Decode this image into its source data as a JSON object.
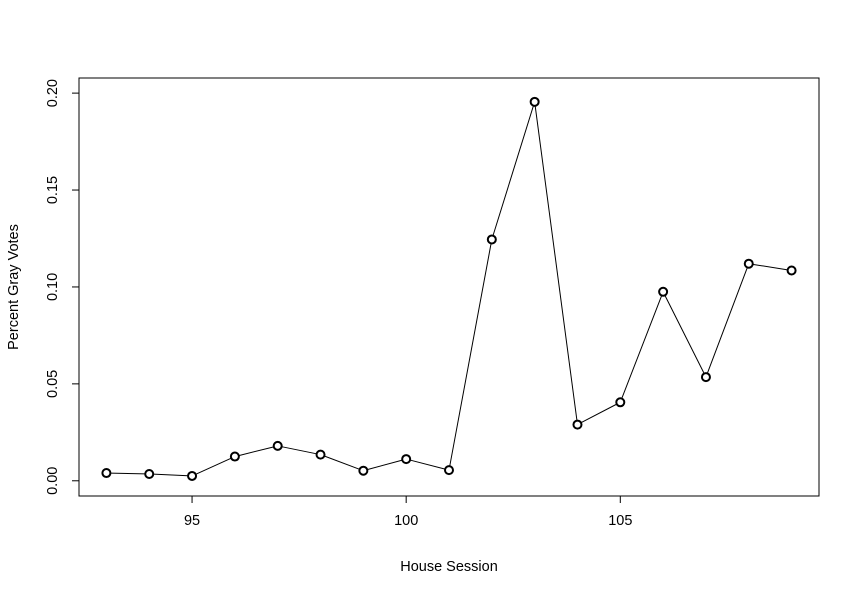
{
  "chart_data": {
    "type": "line",
    "title": "",
    "xlabel": "House Session",
    "ylabel": "Percent Gray Votes",
    "xlim": [
      92.36,
      109.64
    ],
    "ylim": [
      -0.00785,
      0.2078
    ],
    "x_ticks": [
      "95",
      "100",
      "105"
    ],
    "y_ticks": [
      "0.00",
      "0.05",
      "0.10",
      "0.15",
      "0.20"
    ],
    "grid": false,
    "legend": "none",
    "marker": "open-circle",
    "line_color": "#000000",
    "series": [
      {
        "x": [
          93,
          94,
          95,
          96,
          97,
          98,
          99,
          100,
          101,
          102,
          103,
          104,
          105,
          106,
          107,
          108,
          109
        ],
        "y": [
          0.004,
          0.0035,
          0.0025,
          0.0125,
          0.018,
          0.0135,
          0.0052,
          0.0112,
          0.0055,
          0.1245,
          0.1955,
          0.029,
          0.0405,
          0.0975,
          0.0535,
          0.112,
          0.1085
        ]
      }
    ]
  }
}
